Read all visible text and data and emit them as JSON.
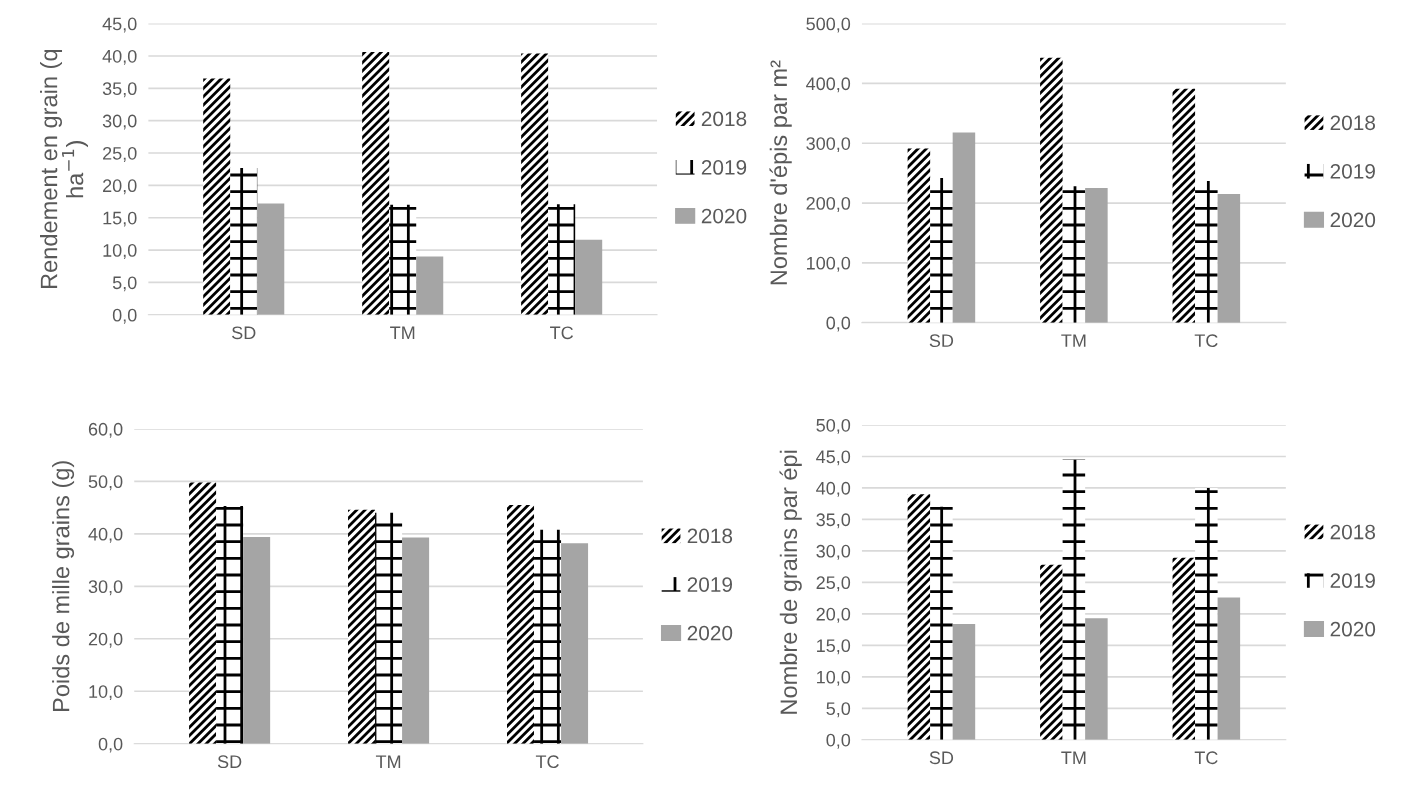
{
  "chart_data": [
    {
      "type": "bar",
      "ylabel": "Rendement en grain (q\nha$^{−1}$)",
      "categories": [
        "SD",
        "TM",
        "TC"
      ],
      "series": [
        {
          "name": "2018",
          "color": "#000000",
          "values": [
            36.5,
            40.6,
            40.4
          ]
        },
        {
          "name": "2019",
          "color": "#000000",
          "values": [
            22.7,
            17.0,
            17.1
          ]
        },
        {
          "name": "2020",
          "color": "#a5a5a5",
          "values": [
            17.2,
            9.0,
            11.6
          ]
        }
      ],
      "ylim": [
        0,
        45
      ],
      "yticks": [
        {
          "value": 0,
          "label": "0,0"
        },
        {
          "value": 5,
          "label": "5,0"
        },
        {
          "value": 10,
          "label": "10,0"
        },
        {
          "value": 15,
          "label": "15,0"
        },
        {
          "value": 20,
          "label": "20,0"
        },
        {
          "value": 25,
          "label": "25,0"
        },
        {
          "value": 30,
          "label": "30,0"
        },
        {
          "value": 35,
          "label": "35,0"
        },
        {
          "value": 40,
          "label": "40,0"
        },
        {
          "value": 45,
          "label": "45,0"
        }
      ],
      "grid": "y",
      "legend": "right"
    },
    {
      "type": "bar",
      "ylabel": "Nombre d'épis par m²",
      "categories": [
        "SD",
        "TM",
        "TC"
      ],
      "series": [
        {
          "name": "2018",
          "color": "#000000",
          "values": [
            291,
            443,
            391
          ]
        },
        {
          "name": "2019",
          "color": "#000000",
          "values": [
            242,
            228,
            237
          ]
        },
        {
          "name": "2020",
          "color": "#a5a5a5",
          "values": [
            318,
            225,
            215
          ]
        }
      ],
      "ylim": [
        0,
        500
      ],
      "yticks": [
        {
          "value": 0,
          "label": "0,0"
        },
        {
          "value": 100,
          "label": "100,0"
        },
        {
          "value": 200,
          "label": "200,0"
        },
        {
          "value": 300,
          "label": "300,0"
        },
        {
          "value": 400,
          "label": "400,0"
        },
        {
          "value": 500,
          "label": "500,0"
        }
      ],
      "grid": "y",
      "legend": "right"
    },
    {
      "type": "bar",
      "ylabel": "Poids de mille grains (g)",
      "categories": [
        "SD",
        "TM",
        "TC"
      ],
      "series": [
        {
          "name": "2018",
          "color": "#000000",
          "values": [
            49.8,
            44.6,
            45.5
          ]
        },
        {
          "name": "2019",
          "color": "#000000",
          "values": [
            45.3,
            44.0,
            40.8
          ]
        },
        {
          "name": "2020",
          "color": "#a5a5a5",
          "values": [
            39.4,
            39.3,
            38.2
          ]
        }
      ],
      "ylim": [
        0,
        60
      ],
      "yticks": [
        {
          "value": 0,
          "label": "0,0"
        },
        {
          "value": 10,
          "label": "10,0"
        },
        {
          "value": 20,
          "label": "20,0"
        },
        {
          "value": 30,
          "label": "30,0"
        },
        {
          "value": 40,
          "label": "40,0"
        },
        {
          "value": 50,
          "label": "50,0"
        },
        {
          "value": 60,
          "label": "60,0"
        }
      ],
      "grid": "y",
      "legend": "right"
    },
    {
      "type": "bar",
      "ylabel": "Nombre de grains par épi",
      "categories": [
        "SD",
        "TM",
        "TC"
      ],
      "series": [
        {
          "name": "2018",
          "color": "#000000",
          "values": [
            39.0,
            27.8,
            28.9
          ]
        },
        {
          "name": "2019",
          "color": "#000000",
          "values": [
            37.0,
            44.5,
            40.0
          ]
        },
        {
          "name": "2020",
          "color": "#a5a5a5",
          "values": [
            18.4,
            19.3,
            22.6
          ]
        }
      ],
      "ylim": [
        0,
        50
      ],
      "yticks": [
        {
          "value": 0,
          "label": "0,0"
        },
        {
          "value": 5,
          "label": "5,0"
        },
        {
          "value": 10,
          "label": "10,0"
        },
        {
          "value": 15,
          "label": "15,0"
        },
        {
          "value": 20,
          "label": "20,0"
        },
        {
          "value": 25,
          "label": "25,0"
        },
        {
          "value": 30,
          "label": "30,0"
        },
        {
          "value": 35,
          "label": "35,0"
        },
        {
          "value": 40,
          "label": "40,0"
        },
        {
          "value": 45,
          "label": "45,0"
        },
        {
          "value": 50,
          "label": "50,0"
        }
      ],
      "grid": "y",
      "legend": "right"
    }
  ]
}
